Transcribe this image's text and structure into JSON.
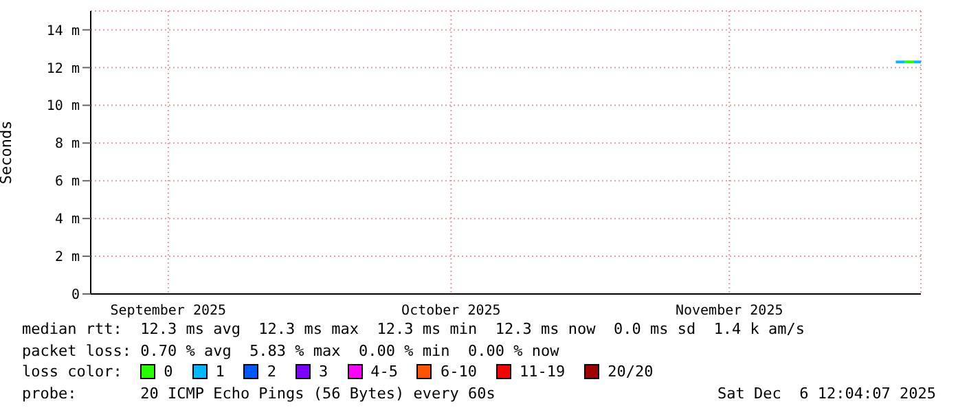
{
  "chart_data": {
    "type": "line",
    "ylabel": "Seconds",
    "legend_title": "loss color:",
    "x": [
      "2025-12-03T18:00",
      "2025-12-04T06:00",
      "2025-12-04T18:00",
      "2025-12-05T06:00",
      "2025-12-05T18:00",
      "2025-12-06T06:00",
      "2025-12-06T12:00"
    ],
    "series": [
      {
        "name": "0",
        "color": "#26ff00",
        "values": [
          null,
          null,
          12.3,
          12.3,
          12.3,
          null,
          null
        ]
      },
      {
        "name": "1",
        "color": "#00b8ff",
        "values": [
          12.3,
          12.3,
          12.3,
          null,
          12.3,
          12.3,
          12.3
        ]
      },
      {
        "name": "2",
        "color": "#0059ff",
        "values": [
          null,
          null,
          null,
          null,
          null,
          null,
          null
        ]
      },
      {
        "name": "3",
        "color": "#7e00ff",
        "values": [
          null,
          null,
          null,
          null,
          null,
          null,
          null
        ]
      },
      {
        "name": "4-5",
        "color": "#ff00ff",
        "values": [
          null,
          null,
          null,
          null,
          null,
          null,
          null
        ]
      },
      {
        "name": "6-10",
        "color": "#ff5500",
        "values": [
          null,
          null,
          null,
          null,
          null,
          null,
          null
        ]
      },
      {
        "name": "11-19",
        "color": "#ff0000",
        "values": [
          null,
          null,
          null,
          null,
          null,
          null,
          null
        ]
      },
      {
        "name": "20/20",
        "color": "#a10000",
        "values": [
          null,
          null,
          null,
          null,
          null,
          null,
          null
        ]
      }
    ],
    "xlim": [
      "2025-09-06T12:00",
      "2025-12-06T12:00"
    ],
    "xticks": [
      {
        "value": "2025-09-15",
        "label": "September 2025"
      },
      {
        "value": "2025-10-16",
        "label": "October 2025"
      },
      {
        "value": "2025-11-15T12:00",
        "label": "November 2025"
      }
    ],
    "ylim": [
      0,
      15
    ],
    "yticks": [
      0,
      {
        "value": 2,
        "label": "2 m"
      },
      {
        "value": 4,
        "label": "4 m"
      },
      {
        "value": 6,
        "label": "6 m"
      },
      {
        "value": 8,
        "label": "8 m"
      },
      {
        "value": 10,
        "label": "10 m"
      },
      {
        "value": 12,
        "label": "12 m"
      },
      {
        "value": 14,
        "label": "14 m"
      }
    ],
    "grid": true,
    "legend": "bottom",
    "marker": "none",
    "line_style": "solid",
    "annotations": [
      "median rtt:  12.3 ms avg  12.3 ms max  12.3 ms min  12.3 ms now  0.0 ms sd  1.4 k am/s",
      "packet loss: 0.70 % avg  5.83 % max  0.00 % min  0.00 % now",
      "probe:       20 ICMP Echo Pings (56 Bytes) every 60s",
      "Sat Dec  6 12:04:07 2025"
    ]
  }
}
